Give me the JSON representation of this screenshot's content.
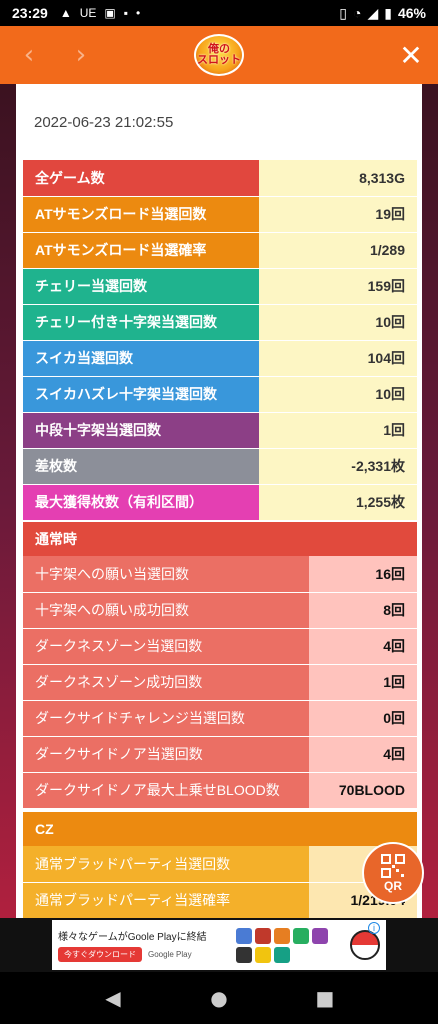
{
  "status_bar": {
    "time": "23:29",
    "icons": [
      "alert-icon",
      "ue-text",
      "app-icon",
      "notification-icon",
      "dot-icon"
    ],
    "ue_label": "UE",
    "battery": "46%"
  },
  "header": {
    "logo_text": "俺の\nスロット"
  },
  "datetime": "2022-06-23 21:02:55",
  "stats": [
    {
      "label": "全ゲーム数",
      "value": "8,313G",
      "color": "#e1473e"
    },
    {
      "label": "ATサモンズロード当選回数",
      "value": "19回",
      "color": "#ec8a10"
    },
    {
      "label": "ATサモンズロード当選確率",
      "value": "1/289",
      "color": "#ec8a10"
    },
    {
      "label": "チェリー当選回数",
      "value": "159回",
      "color": "#1fb38e"
    },
    {
      "label": "チェリー付き十字架当選回数",
      "value": "10回",
      "color": "#1fb38e"
    },
    {
      "label": "スイカ当選回数",
      "value": "104回",
      "color": "#3997db"
    },
    {
      "label": "スイカハズレ十字架当選回数",
      "value": "10回",
      "color": "#3997db"
    },
    {
      "label": "中段十字架当選回数",
      "value": "1回",
      "color": "#8c3f86"
    },
    {
      "label": "差枚数",
      "value": "-2,331枚",
      "color": "#8c8f99"
    },
    {
      "label": "最大獲得枚数（有利区間）",
      "value": "1,255枚",
      "color": "#e43fb2"
    }
  ],
  "normal_section": {
    "title": "通常時",
    "rows": [
      {
        "label": "十字架への願い当選回数",
        "value": "16回"
      },
      {
        "label": "十字架への願い成功回数",
        "value": "8回"
      },
      {
        "label": "ダークネスゾーン当選回数",
        "value": "4回"
      },
      {
        "label": "ダークネスゾーン成功回数",
        "value": "1回"
      },
      {
        "label": "ダークサイドチャレンジ当選回数",
        "value": "0回"
      },
      {
        "label": "ダークサイドノア当選回数",
        "value": "4回"
      },
      {
        "label": "ダークサイドノア最大上乗せBLOOD数",
        "value": "70BLOOD"
      }
    ]
  },
  "cz_section": {
    "title": "CZ",
    "rows": [
      {
        "label": "通常ブラッドパーティ当選回数",
        "value": ""
      },
      {
        "label": "通常ブラッドパーティ当選確率",
        "value": "1/219.04"
      }
    ]
  },
  "qr_button": {
    "label": "QR"
  },
  "ad": {
    "title": "様々なゲームがGoole Playに終結",
    "download": "今すぐダウンロード",
    "store": "Google Play",
    "info": "i"
  },
  "navbar": {
    "back": "◀",
    "home": "●",
    "recents": "■"
  }
}
